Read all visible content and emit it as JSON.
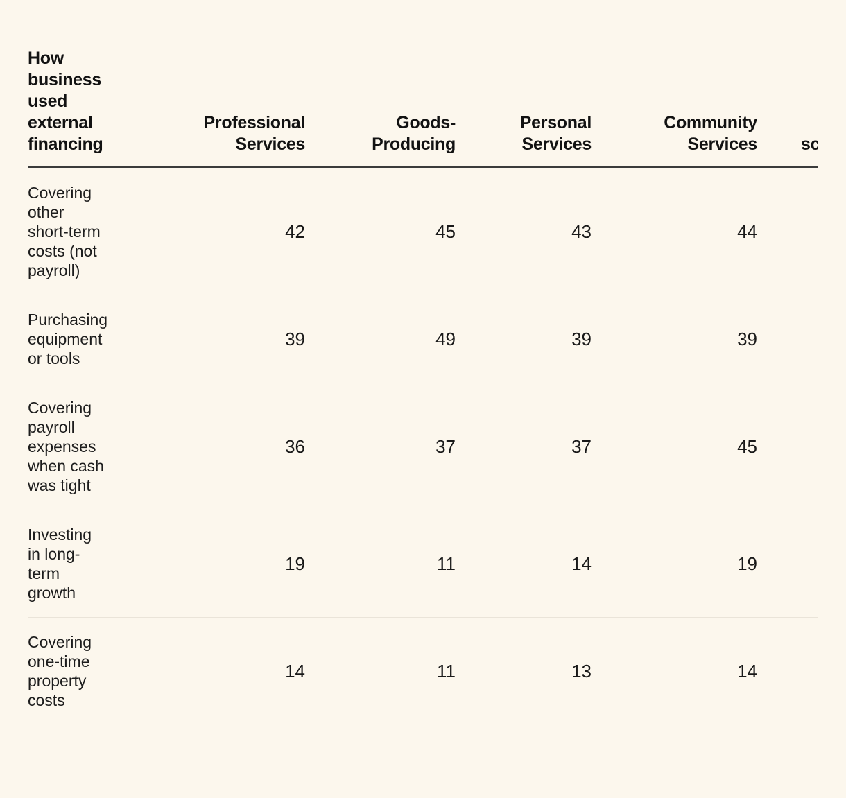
{
  "chart_data": {
    "type": "table",
    "title": "How business used external financing",
    "columns": [
      "Professional Services",
      "Goods-Producing",
      "Personal Services",
      "Community Services",
      "sc"
    ],
    "rows": [
      {
        "label": "Covering other short-term costs (not payroll)",
        "values": [
          42,
          45,
          43,
          44
        ]
      },
      {
        "label": "Purchasing equipment or tools",
        "values": [
          39,
          49,
          39,
          39
        ]
      },
      {
        "label": "Covering payroll expenses when cash was tight",
        "values": [
          36,
          37,
          37,
          45
        ]
      },
      {
        "label": "Investing in long-term growth",
        "values": [
          19,
          11,
          14,
          19
        ]
      },
      {
        "label": "Covering one-time property costs",
        "values": [
          14,
          11,
          13,
          14
        ]
      }
    ],
    "notes": "Last column header is clipped at the right edge; only the letters 'sc' are visible. No data values are visible for that column."
  },
  "display": {
    "title_lines": "How\nbusiness\nused\nexternal\nfinancing",
    "column_lines": [
      "Professional\nServices",
      "Goods-\nProducing",
      "Personal\nServices",
      "Community\nServices",
      "sc"
    ],
    "row_label_lines": [
      "Covering\nother\nshort-term\ncosts (not\npayroll)",
      "Purchasing\nequipment\nor tools",
      "Covering\npayroll\nexpenses\nwhen cash\nwas tight",
      "Investing\nin long-\nterm\ngrowth",
      "Covering\none-time\nproperty\ncosts"
    ]
  },
  "colors": {
    "background": "#FCF7ED",
    "text": "#191919",
    "header_rule": "#3B3B3B",
    "row_rule": "#EAE4D9"
  }
}
